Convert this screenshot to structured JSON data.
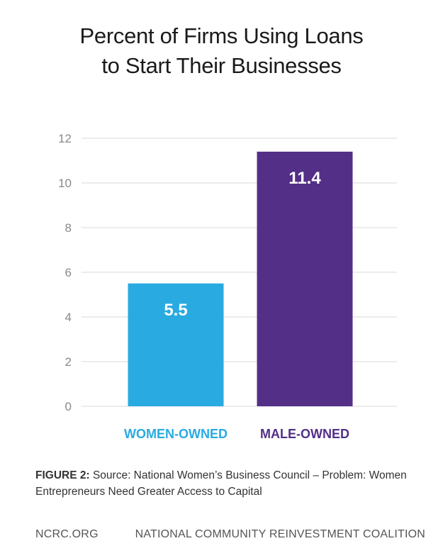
{
  "chart_data": {
    "type": "bar",
    "title_lines": [
      "Percent of Firms Using Loans",
      "to Start Their Businesses"
    ],
    "categories": [
      "WOMEN-OWNED",
      "MALE-OWNED"
    ],
    "values": [
      5.5,
      11.4
    ],
    "value_labels": [
      "5.5",
      "11.4"
    ],
    "colors": [
      "#29abe2",
      "#532f87"
    ],
    "category_label_colors": [
      "#29abe2",
      "#532f87"
    ],
    "ylim": [
      0,
      12
    ],
    "yticks": [
      0,
      2,
      4,
      6,
      8,
      10,
      12
    ],
    "grid": true,
    "xlabel": "",
    "ylabel": ""
  },
  "caption": {
    "label": "FIGURE 2:",
    "text": " Source: National Women’s Business Council – Problem: Women Entrepreneurs Need Greater Access to Capital"
  },
  "footer": {
    "left": "NCRC.ORG",
    "right": "NATIONAL COMMUNITY REINVESTMENT COALITION"
  }
}
